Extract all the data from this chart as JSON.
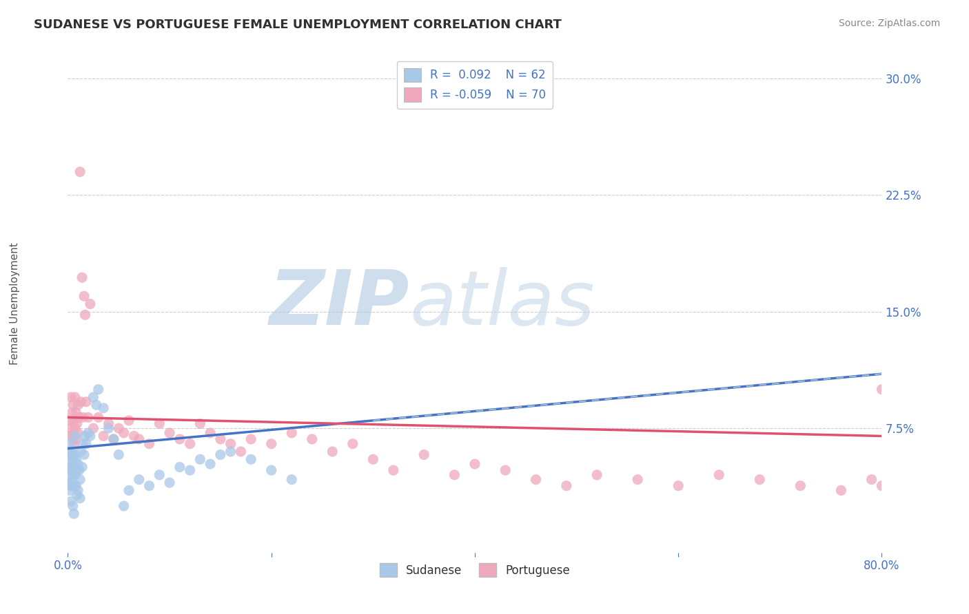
{
  "title": "SUDANESE VS PORTUGUESE FEMALE UNEMPLOYMENT CORRELATION CHART",
  "source_text": "Source: ZipAtlas.com",
  "ylabel": "Female Unemployment",
  "xlim": [
    0.0,
    0.8
  ],
  "ylim": [
    -0.005,
    0.315
  ],
  "ytick_labels": [
    "7.5%",
    "15.0%",
    "22.5%",
    "30.0%"
  ],
  "ytick_positions": [
    0.075,
    0.15,
    0.225,
    0.3
  ],
  "sudanese_color": "#A8C8E8",
  "portuguese_color": "#F0A8BC",
  "trend_sudanese_color": "#4472C4",
  "trend_portuguese_color": "#E05070",
  "trend_sudanese_dashed_color": "#A0B8D8",
  "legend_text1": "R =  0.092    N = 62",
  "legend_text2": "R = -0.059    N = 70",
  "watermark_text": "ZIPatlas",
  "watermark_color": "#C8D8E8",
  "background_color": "#FFFFFF",
  "grid_color": "#CCCCCC",
  "axis_label_color": "#4472C4",
  "title_color": "#303030",
  "title_fontsize": 13,
  "source_fontsize": 10,
  "sudanese_points_x": [
    0.001,
    0.001,
    0.001,
    0.002,
    0.002,
    0.002,
    0.002,
    0.003,
    0.003,
    0.003,
    0.003,
    0.004,
    0.004,
    0.004,
    0.005,
    0.005,
    0.005,
    0.006,
    0.006,
    0.006,
    0.007,
    0.007,
    0.007,
    0.008,
    0.008,
    0.009,
    0.009,
    0.01,
    0.01,
    0.011,
    0.012,
    0.012,
    0.013,
    0.014,
    0.015,
    0.016,
    0.017,
    0.018,
    0.02,
    0.022,
    0.025,
    0.028,
    0.03,
    0.035,
    0.04,
    0.045,
    0.05,
    0.055,
    0.06,
    0.07,
    0.08,
    0.09,
    0.1,
    0.11,
    0.12,
    0.13,
    0.14,
    0.15,
    0.16,
    0.18,
    0.2,
    0.22
  ],
  "sudanese_points_y": [
    0.06,
    0.05,
    0.04,
    0.065,
    0.055,
    0.045,
    0.035,
    0.058,
    0.048,
    0.038,
    0.028,
    0.06,
    0.05,
    0.04,
    0.055,
    0.045,
    0.025,
    0.05,
    0.038,
    0.02,
    0.07,
    0.058,
    0.045,
    0.055,
    0.038,
    0.048,
    0.032,
    0.052,
    0.035,
    0.048,
    0.042,
    0.03,
    0.06,
    0.05,
    0.065,
    0.058,
    0.07,
    0.065,
    0.072,
    0.07,
    0.095,
    0.09,
    0.1,
    0.088,
    0.075,
    0.068,
    0.058,
    0.025,
    0.035,
    0.042,
    0.038,
    0.045,
    0.04,
    0.05,
    0.048,
    0.055,
    0.052,
    0.058,
    0.06,
    0.055,
    0.048,
    0.042
  ],
  "portuguese_points_x": [
    0.001,
    0.002,
    0.003,
    0.003,
    0.004,
    0.005,
    0.005,
    0.006,
    0.006,
    0.007,
    0.007,
    0.008,
    0.008,
    0.009,
    0.01,
    0.01,
    0.011,
    0.012,
    0.013,
    0.014,
    0.015,
    0.016,
    0.017,
    0.018,
    0.02,
    0.022,
    0.025,
    0.03,
    0.035,
    0.04,
    0.045,
    0.05,
    0.055,
    0.06,
    0.065,
    0.07,
    0.08,
    0.09,
    0.1,
    0.11,
    0.12,
    0.13,
    0.14,
    0.15,
    0.16,
    0.17,
    0.18,
    0.2,
    0.22,
    0.24,
    0.26,
    0.28,
    0.3,
    0.32,
    0.35,
    0.38,
    0.4,
    0.43,
    0.46,
    0.49,
    0.52,
    0.56,
    0.6,
    0.64,
    0.68,
    0.72,
    0.76,
    0.79,
    0.8,
    0.8
  ],
  "portuguese_points_y": [
    0.07,
    0.08,
    0.095,
    0.075,
    0.085,
    0.09,
    0.07,
    0.08,
    0.065,
    0.095,
    0.075,
    0.085,
    0.068,
    0.078,
    0.09,
    0.072,
    0.082,
    0.24,
    0.092,
    0.172,
    0.082,
    0.16,
    0.148,
    0.092,
    0.082,
    0.155,
    0.075,
    0.082,
    0.07,
    0.078,
    0.068,
    0.075,
    0.072,
    0.08,
    0.07,
    0.068,
    0.065,
    0.078,
    0.072,
    0.068,
    0.065,
    0.078,
    0.072,
    0.068,
    0.065,
    0.06,
    0.068,
    0.065,
    0.072,
    0.068,
    0.06,
    0.065,
    0.055,
    0.048,
    0.058,
    0.045,
    0.052,
    0.048,
    0.042,
    0.038,
    0.045,
    0.042,
    0.038,
    0.045,
    0.042,
    0.038,
    0.035,
    0.042,
    0.038,
    0.1
  ],
  "sud_trend_x0": 0.0,
  "sud_trend_y0": 0.062,
  "sud_trend_x1": 0.8,
  "sud_trend_y1": 0.11,
  "por_trend_x0": 0.0,
  "por_trend_y0": 0.082,
  "por_trend_x1": 0.8,
  "por_trend_y1": 0.07
}
